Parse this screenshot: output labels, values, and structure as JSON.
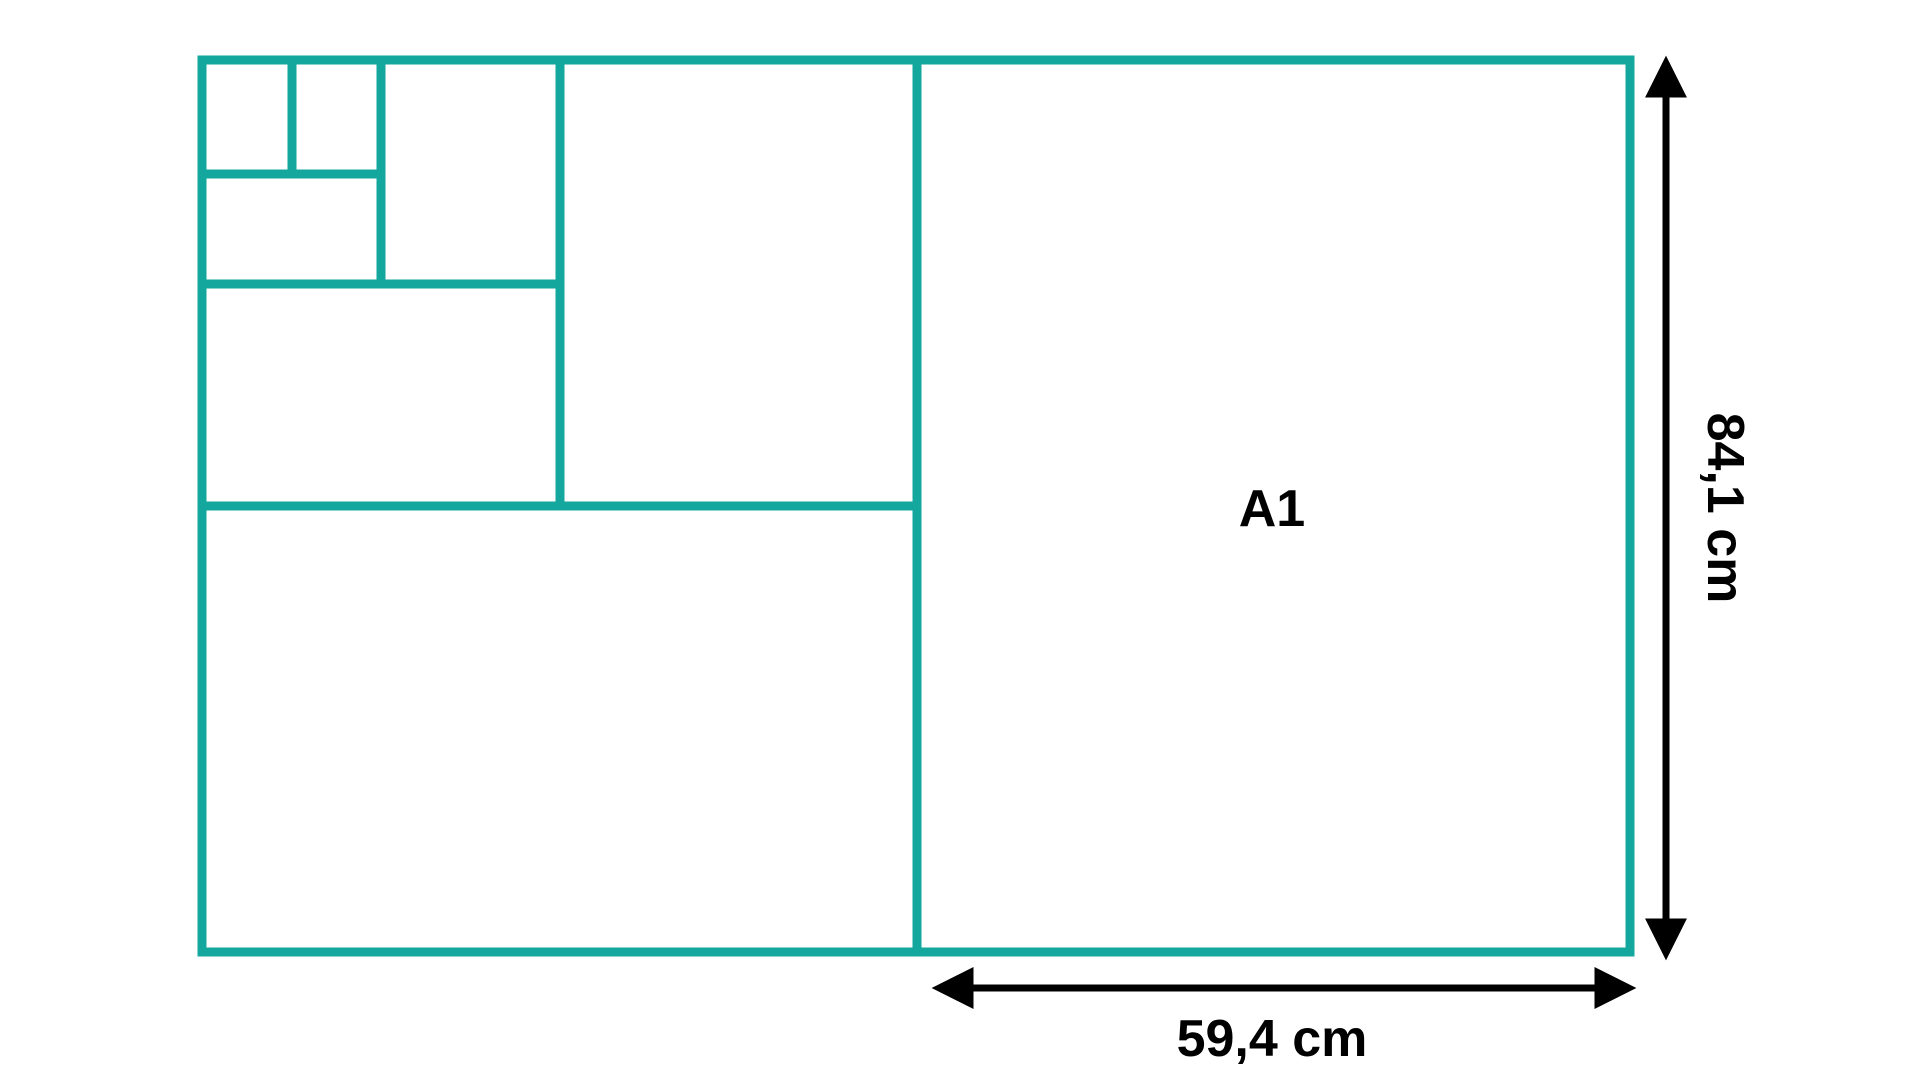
{
  "colors": {
    "line": "#13A79D",
    "arrow": "#000000",
    "background": "#FFFFFF"
  },
  "sheet": {
    "label": "A1",
    "width_label": "59,4 cm",
    "height_label": "84,1 cm"
  }
}
